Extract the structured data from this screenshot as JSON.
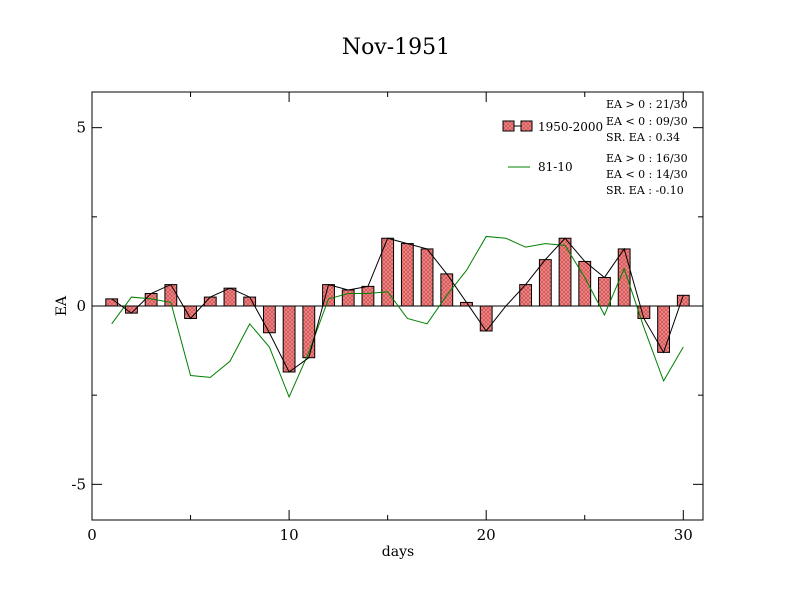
{
  "chart_data": {
    "type": "bar",
    "title": "Nov-1951",
    "xlabel": "days",
    "ylabel": "EA",
    "xlim": [
      0,
      31
    ],
    "ylim": [
      -6,
      6
    ],
    "x_ticks": [
      0,
      10,
      20,
      30
    ],
    "x_tick_labels": [
      "0",
      "10",
      "20",
      "30"
    ],
    "y_ticks": [
      -5,
      0,
      5
    ],
    "y_tick_labels": [
      "-5",
      "0",
      "5"
    ],
    "grid": false,
    "legend_position": "top-right",
    "colors": {
      "bar_fill": "#f08080",
      "bar_stroke": "#000000",
      "bar_line": "#000000",
      "green_line": "#008000"
    },
    "series": [
      {
        "name": "1950-2000",
        "kind": "bar_with_line",
        "x": [
          1,
          2,
          3,
          4,
          5,
          6,
          7,
          8,
          9,
          10,
          11,
          12,
          13,
          14,
          15,
          16,
          17,
          18,
          19,
          20,
          21,
          22,
          23,
          24,
          25,
          26,
          27,
          28,
          29,
          30
        ],
        "values": [
          0.2,
          -0.2,
          0.35,
          0.6,
          -0.35,
          0.25,
          0.5,
          0.25,
          -0.75,
          -1.85,
          -1.45,
          0.6,
          0.45,
          0.55,
          1.9,
          1.75,
          1.6,
          0.9,
          0.1,
          -0.7,
          0.0,
          0.6,
          1.3,
          1.9,
          1.25,
          0.8,
          1.6,
          -0.35,
          -1.3,
          0.3
        ]
      },
      {
        "name": "81-10",
        "kind": "line",
        "x": [
          1,
          2,
          3,
          4,
          5,
          6,
          7,
          8,
          9,
          10,
          11,
          12,
          13,
          14,
          15,
          16,
          17,
          18,
          19,
          20,
          21,
          22,
          23,
          24,
          25,
          26,
          27,
          28,
          29,
          30
        ],
        "values": [
          -0.5,
          0.25,
          0.2,
          0.1,
          -1.95,
          -2.0,
          -1.55,
          -0.5,
          -1.15,
          -2.55,
          -1.3,
          0.2,
          0.35,
          0.35,
          0.4,
          -0.35,
          -0.5,
          0.3,
          1.0,
          1.95,
          1.9,
          1.65,
          1.75,
          1.7,
          0.8,
          -0.25,
          1.05,
          -0.6,
          -2.1,
          -1.15
        ]
      }
    ],
    "stats_1950_2000": [
      "EA > 0 : 21/30",
      "EA < 0 : 09/30",
      "SR. EA :  0.34"
    ],
    "stats_81_10": [
      "EA > 0 : 16/30",
      "EA < 0 : 14/30",
      "SR. EA : -0.10"
    ]
  }
}
